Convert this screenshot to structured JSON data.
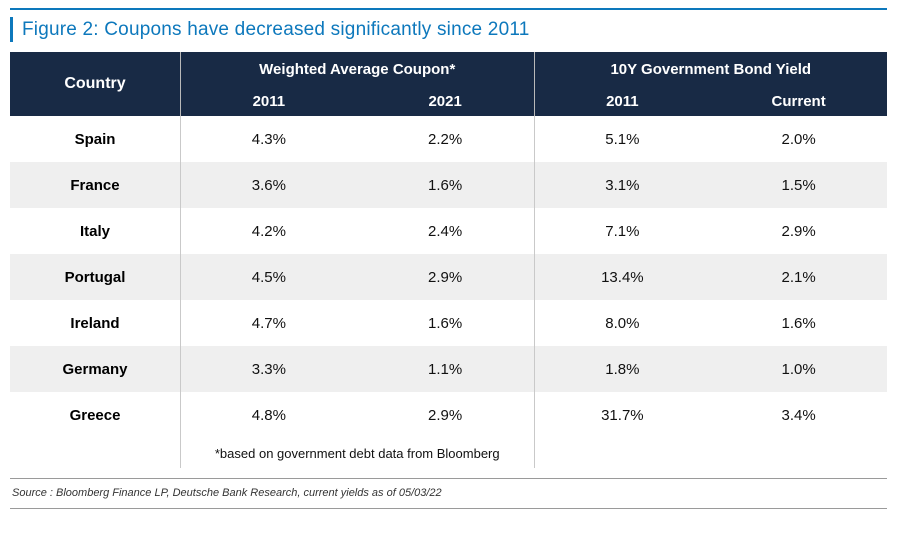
{
  "figure": {
    "title": "Figure 2: Coupons have decreased significantly since 2011"
  },
  "table": {
    "col_country": "Country",
    "group1": "Weighted Average Coupon*",
    "group2": "10Y Government Bond Yield",
    "sub_wac_2011": "2011",
    "sub_wac_2021": "2021",
    "sub_gby_2011": "2011",
    "sub_gby_current": "Current",
    "rows": [
      {
        "country": "Spain",
        "wac_2011": "4.3%",
        "wac_2021": "2.2%",
        "gby_2011": "5.1%",
        "gby_current": "2.0%"
      },
      {
        "country": "France",
        "wac_2011": "3.6%",
        "wac_2021": "1.6%",
        "gby_2011": "3.1%",
        "gby_current": "1.5%"
      },
      {
        "country": "Italy",
        "wac_2011": "4.2%",
        "wac_2021": "2.4%",
        "gby_2011": "7.1%",
        "gby_current": "2.9%"
      },
      {
        "country": "Portugal",
        "wac_2011": "4.5%",
        "wac_2021": "2.9%",
        "gby_2011": "13.4%",
        "gby_current": "2.1%"
      },
      {
        "country": "Ireland",
        "wac_2011": "4.7%",
        "wac_2021": "1.6%",
        "gby_2011": "8.0%",
        "gby_current": "1.6%"
      },
      {
        "country": "Germany",
        "wac_2011": "3.3%",
        "wac_2021": "1.1%",
        "gby_2011": "1.8%",
        "gby_current": "1.0%"
      },
      {
        "country": "Greece",
        "wac_2011": "4.8%",
        "wac_2021": "2.9%",
        "gby_2011": "31.7%",
        "gby_current": "3.4%"
      }
    ],
    "footnote": "*based on government debt data from Bloomberg"
  },
  "source": "Source : Bloomberg Finance LP, Deutsche Bank Research, current yields as of 05/03/22",
  "colors": {
    "title_blue": "#0d78bc",
    "header_navy": "#182a45",
    "alt_row_gray": "#efefef"
  },
  "chart_data": {
    "type": "table",
    "title": "Figure 2: Coupons have decreased significantly since 2011",
    "columns": [
      "Country",
      "Weighted Average Coupon* 2011",
      "Weighted Average Coupon* 2021",
      "10Y Government Bond Yield 2011",
      "10Y Government Bond Yield Current"
    ],
    "rows": [
      [
        "Spain",
        "4.3%",
        "2.2%",
        "5.1%",
        "2.0%"
      ],
      [
        "France",
        "3.6%",
        "1.6%",
        "3.1%",
        "1.5%"
      ],
      [
        "Italy",
        "4.2%",
        "2.4%",
        "7.1%",
        "2.9%"
      ],
      [
        "Portugal",
        "4.5%",
        "2.9%",
        "13.4%",
        "2.1%"
      ],
      [
        "Ireland",
        "4.7%",
        "1.6%",
        "8.0%",
        "1.6%"
      ],
      [
        "Germany",
        "3.3%",
        "1.1%",
        "1.8%",
        "1.0%"
      ],
      [
        "Greece",
        "4.8%",
        "2.9%",
        "31.7%",
        "3.4%"
      ]
    ],
    "footnote": "*based on government debt data from Bloomberg",
    "source": "Source : Bloomberg Finance LP, Deutsche Bank Research, current yields as of 05/03/22"
  }
}
